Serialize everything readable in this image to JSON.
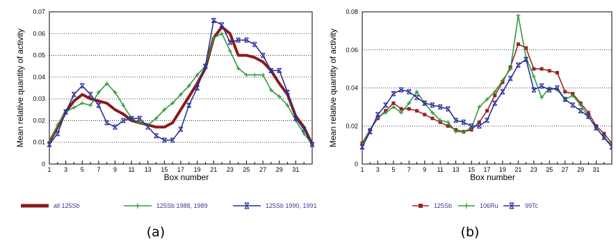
{
  "panel_labels": [
    "(a)",
    "(b)"
  ],
  "chart_data": [
    {
      "type": "line",
      "xlabel": "Box number",
      "ylabel": "Mean relative quantity of activity",
      "xlim": [
        1,
        33
      ],
      "ylim": [
        0,
        0.07
      ],
      "xticks": [
        1,
        3,
        5,
        7,
        9,
        11,
        13,
        15,
        17,
        19,
        21,
        23,
        25,
        27,
        29,
        31
      ],
      "yticks": [
        0,
        0.01,
        0.02,
        0.03,
        0.04,
        0.05,
        0.06,
        0.07
      ],
      "ytick_labels": [
        "0",
        "0.01",
        "0.02",
        "0.03",
        "0.04",
        "0.05",
        "0.06",
        "0.07"
      ],
      "grid": true,
      "legend_position": "bottom",
      "x": [
        1,
        2,
        3,
        4,
        5,
        6,
        7,
        8,
        9,
        10,
        11,
        12,
        13,
        14,
        15,
        16,
        17,
        18,
        19,
        20,
        21,
        22,
        23,
        24,
        25,
        26,
        27,
        28,
        29,
        30,
        31,
        32,
        33
      ],
      "series": [
        {
          "name": "all 125Sb",
          "color": "#8b1a1a",
          "marker": "none",
          "width": 4,
          "values": [
            0.01,
            0.017,
            0.024,
            0.029,
            0.032,
            0.03,
            0.029,
            0.028,
            0.025,
            0.023,
            0.02,
            0.019,
            0.018,
            0.017,
            0.017,
            0.019,
            0.025,
            0.031,
            0.037,
            0.044,
            0.058,
            0.063,
            0.06,
            0.05,
            0.05,
            0.049,
            0.047,
            0.043,
            0.037,
            0.032,
            0.022,
            0.017,
            0.009
          ]
        },
        {
          "name": "125Sb 1988, 1989",
          "color": "#2f9a3a",
          "marker": "plus",
          "width": 1.6,
          "values": [
            0.01,
            0.018,
            0.024,
            0.026,
            0.028,
            0.027,
            0.033,
            0.037,
            0.033,
            0.027,
            0.021,
            0.019,
            0.018,
            0.021,
            0.025,
            0.028,
            0.032,
            0.036,
            0.041,
            0.045,
            0.058,
            0.06,
            0.052,
            0.044,
            0.041,
            0.041,
            0.041,
            0.034,
            0.031,
            0.027,
            0.02,
            0.014,
            0.009
          ]
        },
        {
          "name": "125Sb 1990, 1991",
          "color": "#2a2f9b",
          "marker": "x",
          "width": 1.6,
          "values": [
            0.009,
            0.014,
            0.024,
            0.032,
            0.036,
            0.032,
            0.027,
            0.019,
            0.017,
            0.02,
            0.021,
            0.021,
            0.017,
            0.013,
            0.011,
            0.011,
            0.016,
            0.027,
            0.035,
            0.045,
            0.066,
            0.064,
            0.056,
            0.057,
            0.057,
            0.055,
            0.05,
            0.043,
            0.043,
            0.033,
            0.021,
            0.016,
            0.009
          ]
        }
      ]
    },
    {
      "type": "line",
      "xlabel": "Box number",
      "ylabel": "Mean relative quantity of activity",
      "xlim": [
        1,
        33
      ],
      "ylim": [
        0,
        0.08
      ],
      "xticks": [
        1,
        3,
        5,
        7,
        9,
        11,
        13,
        15,
        17,
        19,
        21,
        23,
        25,
        27,
        29,
        31
      ],
      "yticks": [
        0,
        0.02,
        0.04,
        0.06,
        0.08
      ],
      "ytick_labels": [
        "0",
        "0.02",
        "0.04",
        "0.06",
        "0.08"
      ],
      "grid": true,
      "legend_position": "bottom",
      "x": [
        1,
        2,
        3,
        4,
        5,
        6,
        7,
        8,
        9,
        10,
        11,
        12,
        13,
        14,
        15,
        16,
        17,
        18,
        19,
        20,
        21,
        22,
        23,
        24,
        25,
        26,
        27,
        28,
        29,
        30,
        31,
        32,
        33
      ],
      "series": [
        {
          "name": "125Sb",
          "color": "#9b2323",
          "marker": "square",
          "width": 1.6,
          "values": [
            0.011,
            0.018,
            0.024,
            0.028,
            0.032,
            0.029,
            0.029,
            0.028,
            0.026,
            0.024,
            0.022,
            0.02,
            0.018,
            0.017,
            0.018,
            0.022,
            0.028,
            0.036,
            0.043,
            0.051,
            0.063,
            0.061,
            0.05,
            0.05,
            0.049,
            0.048,
            0.038,
            0.037,
            0.032,
            0.027,
            0.02,
            0.016,
            0.011
          ]
        },
        {
          "name": "106Ru",
          "color": "#2f9a3a",
          "marker": "plus",
          "width": 1.6,
          "values": [
            0.01,
            0.018,
            0.025,
            0.027,
            0.03,
            0.027,
            0.032,
            0.038,
            0.032,
            0.027,
            0.023,
            0.022,
            0.017,
            0.017,
            0.019,
            0.03,
            0.034,
            0.038,
            0.044,
            0.05,
            0.078,
            0.056,
            0.046,
            0.035,
            0.04,
            0.039,
            0.034,
            0.036,
            0.031,
            0.025,
            0.019,
            0.014,
            0.01
          ]
        },
        {
          "name": "99Tc",
          "color": "#2a2f9b",
          "marker": "x",
          "width": 1.6,
          "values": [
            0.009,
            0.017,
            0.026,
            0.031,
            0.037,
            0.039,
            0.038,
            0.035,
            0.032,
            0.031,
            0.03,
            0.029,
            0.023,
            0.022,
            0.02,
            0.02,
            0.023,
            0.032,
            0.038,
            0.045,
            0.052,
            0.055,
            0.039,
            0.041,
            0.039,
            0.04,
            0.034,
            0.031,
            0.028,
            0.025,
            0.019,
            0.014,
            0.009
          ]
        }
      ]
    }
  ]
}
